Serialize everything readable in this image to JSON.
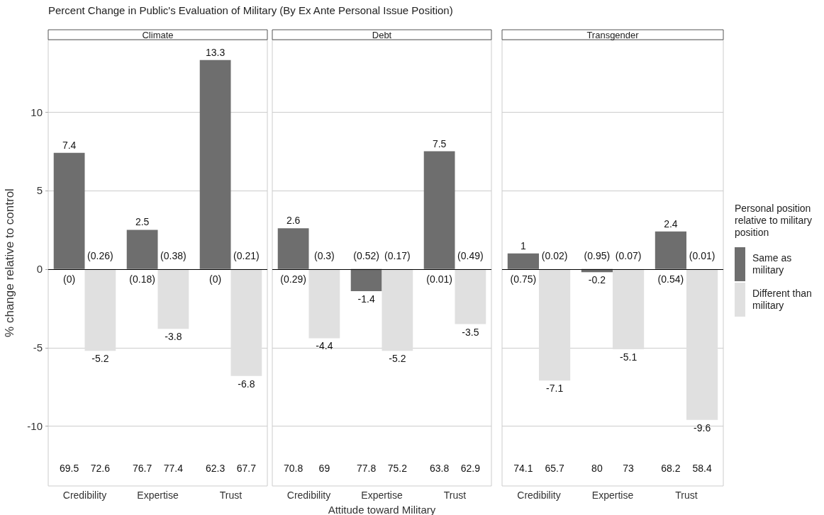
{
  "chart_data": [
    {
      "type": "bar",
      "title": "Percent Change in Public's Evaluation of Military (By Ex Ante Personal Issue Position)",
      "subtitle": "Climate",
      "ylabel": "% change relative to control",
      "categories": [
        "Credibility",
        "Expertise",
        "Trust"
      ],
      "series": [
        {
          "color": "#6e6e6e",
          "values": [
            7.4,
            2.5,
            13.3
          ]
        },
        {
          "color": "#e0e0e0",
          "values": [
            -5.2,
            -3.8,
            -6.8
          ]
        }
      ],
      "ylim": [
        -13.8,
        14.6
      ],
      "yticks": [
        -10,
        -5,
        0,
        5,
        10
      ],
      "grid": "y",
      "data_labels": true,
      "ref_lines": [
        {
          "axis": "y",
          "value": 0,
          "color": "#000000"
        }
      ],
      "annotations": [
        "(0)",
        "(0.26)",
        "(0.18)",
        "(0.38)",
        "(0)",
        "(0.21)",
        "69.5",
        "72.6",
        "76.7",
        "77.4",
        "62.3",
        "67.7"
      ]
    },
    {
      "type": "bar",
      "subtitle": "Debt",
      "xlabel": "Attitude toward Military",
      "categories": [
        "Credibility",
        "Expertise",
        "Trust"
      ],
      "series": [
        {
          "color": "#6e6e6e",
          "values": [
            2.6,
            -1.4,
            7.5
          ]
        },
        {
          "color": "#e0e0e0",
          "values": [
            -4.4,
            -5.2,
            -3.5
          ]
        }
      ],
      "ylim": [
        -13.8,
        14.6
      ],
      "yticks": [
        -10,
        -5,
        0,
        5,
        10
      ],
      "tick_labels": "x",
      "grid": "y",
      "data_labels": true,
      "ref_lines": [
        {
          "axis": "y",
          "value": 0,
          "color": "#000000"
        }
      ],
      "annotations": [
        "(0.29)",
        "(0.3)",
        "(0.52)",
        "(0.17)",
        "(0.01)",
        "(0.49)",
        "70.8",
        "69",
        "77.8",
        "75.2",
        "63.8",
        "62.9"
      ]
    },
    {
      "type": "bar",
      "subtitle": "Transgender",
      "categories": [
        "Credibility",
        "Expertise",
        "Trust"
      ],
      "series": [
        {
          "name": "Same as military",
          "color": "#6e6e6e",
          "values": [
            1,
            -0.2,
            2.4
          ]
        },
        {
          "name": "Different than military",
          "color": "#e0e0e0",
          "values": [
            -7.1,
            -5.1,
            -9.6
          ]
        }
      ],
      "ylim": [
        -13.8,
        14.6
      ],
      "yticks": [
        -10,
        -5,
        0,
        5,
        10
      ],
      "tick_labels": "x",
      "grid": "y",
      "data_labels": true,
      "legend": "right",
      "legend_title": "Personal position relative to military position",
      "ref_lines": [
        {
          "axis": "y",
          "value": 0,
          "color": "#000000"
        }
      ],
      "annotations": [
        "(0.75)",
        "(0.02)",
        "(0.95)",
        "(0.07)",
        "(0.54)",
        "(0.01)",
        "74.1",
        "65.7",
        "80",
        "73",
        "68.2",
        "58.4"
      ]
    }
  ]
}
